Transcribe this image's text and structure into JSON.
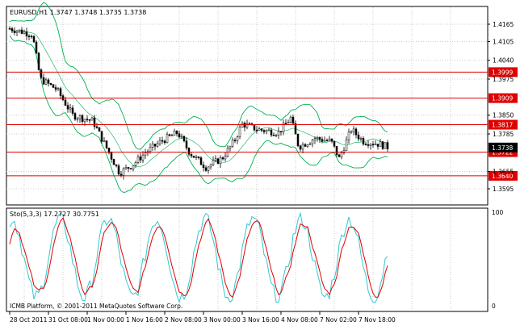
{
  "main_chart": {
    "symbol_header": "EURUSD,H1  1.3747 1.3748 1.3735 1.3738",
    "price_ticks": [
      "1.4165",
      "1.4105",
      "1.4040",
      "1.3975",
      "1.3850",
      "1.3785",
      "1.3655",
      "1.3595"
    ],
    "horizontal_lines": [
      {
        "price": 1.3999,
        "label": "1.3999"
      },
      {
        "price": 1.3909,
        "label": "1.3909"
      },
      {
        "price": 1.3817,
        "label": "1.3817"
      },
      {
        "price": 1.3722,
        "label": "1.3722"
      },
      {
        "price": 1.364,
        "label": "1.3640"
      }
    ],
    "current_price": {
      "price": 1.3738,
      "label": "1.3738"
    },
    "colors": {
      "line": "#e00000",
      "band": "#00b050",
      "candle": "#000000",
      "label_bg": "#e00000",
      "label_fg": "#ffffff",
      "current_bg": "#000000"
    }
  },
  "indicator": {
    "header": "Sto(5,3,3) 17.2727 30.7751",
    "ticks": [
      "100",
      "0"
    ],
    "colors": {
      "main": "#30c8d0",
      "signal": "#e00000"
    }
  },
  "footer": {
    "copyright": "ICMB Platform, © 2001-2011 MetaQuotes Software Corp."
  },
  "time_axis": [
    "28 Oct 2011",
    "31 Oct 08:00",
    "1 Nov 00:00",
    "1 Nov 16:00",
    "2 Nov 08:00",
    "3 Nov 00:00",
    "3 Nov 16:00",
    "4 Nov 08:00",
    "7 Nov 02:00",
    "7 Nov 18:00"
  ]
}
